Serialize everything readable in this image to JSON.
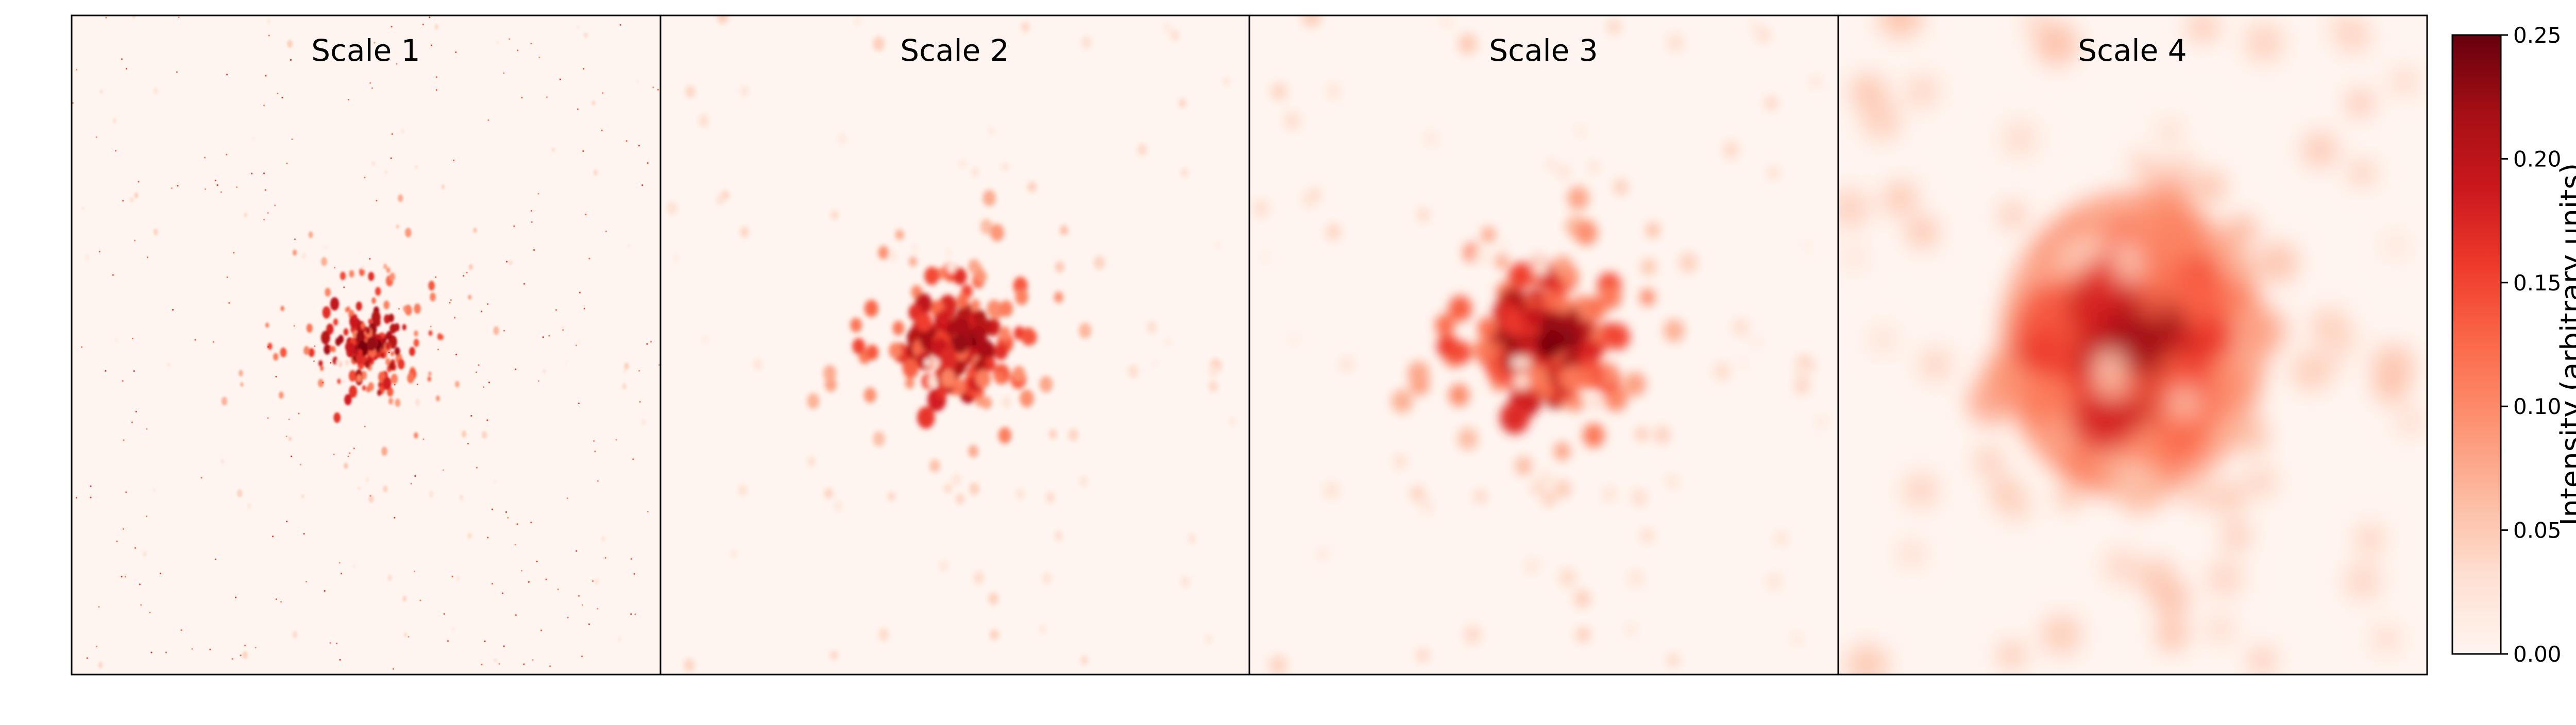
{
  "panels": [
    {
      "title": "Scale 1"
    },
    {
      "title": "Scale 2"
    },
    {
      "title": "Scale 3"
    },
    {
      "title": "Scale 4"
    }
  ],
  "colorbar": {
    "label": "Intensity (arbitrary units)",
    "colormap": "Reds",
    "range": [
      0.0,
      0.25
    ],
    "ticks": [
      "0.00",
      "0.05",
      "0.10",
      "0.15",
      "0.20",
      "0.25"
    ],
    "colors": {
      "low": "#fff5f0",
      "mid_low": "#fcbba1",
      "mid": "#fb6a4a",
      "mid_high": "#cb181d",
      "high": "#67000d"
    }
  }
}
